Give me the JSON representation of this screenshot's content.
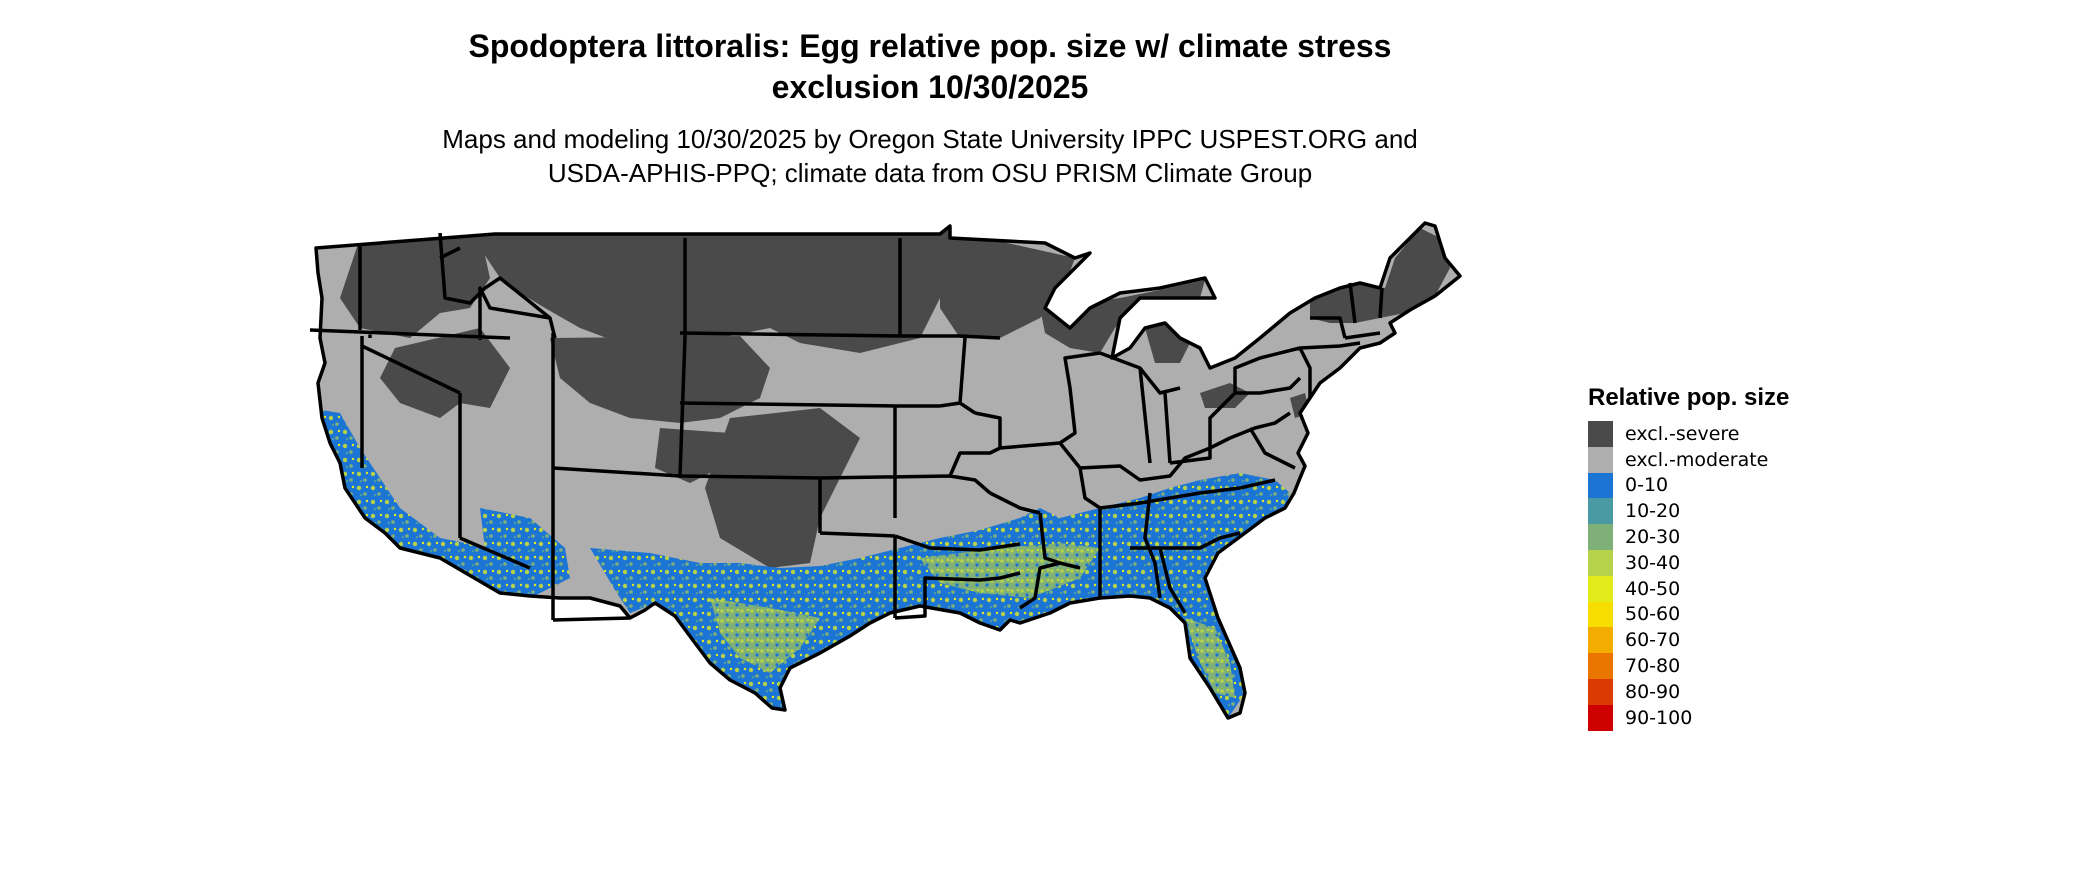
{
  "title_line1": "Spodoptera littoralis: Egg relative pop. size w/ climate stress",
  "title_line2": "exclusion 10/30/2025",
  "subtitle_line1": "Maps and modeling 10/30/2025 by Oregon State University IPPC USPEST.ORG and",
  "subtitle_line2": "USDA-APHIS-PPQ; climate data from OSU PRISM Climate Group",
  "map": {
    "region": "Conterminous United States",
    "colors": {
      "excl_severe": "#4a4a4a",
      "excl_moderate": "#aeaeae",
      "state_border": "#000000"
    }
  },
  "legend": {
    "title": "Relative pop. size",
    "items": [
      {
        "label": "excl.-severe",
        "color": "#4a4a4a"
      },
      {
        "label": "excl.-moderate",
        "color": "#aeaeae"
      },
      {
        "label": "0-10",
        "color": "#1c74d4"
      },
      {
        "label": "10-20",
        "color": "#4a9aa3"
      },
      {
        "label": "20-30",
        "color": "#7fb077"
      },
      {
        "label": "30-40",
        "color": "#b5d24a"
      },
      {
        "label": "40-50",
        "color": "#e3ec1a"
      },
      {
        "label": "50-60",
        "color": "#f7de00"
      },
      {
        "label": "60-70",
        "color": "#f2ad00"
      },
      {
        "label": "70-80",
        "color": "#ea7600"
      },
      {
        "label": "80-90",
        "color": "#db3a00"
      },
      {
        "label": "90-100",
        "color": "#cf0000"
      }
    ]
  }
}
